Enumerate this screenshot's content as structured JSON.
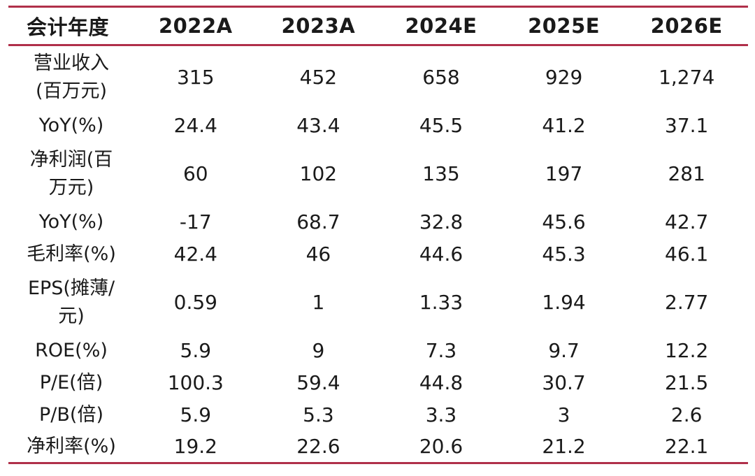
{
  "table": {
    "header": [
      "会计年度",
      "2022A",
      "2023A",
      "2024E",
      "2025E",
      "2026E"
    ],
    "rows": [
      {
        "label": "营业收入\n(百万元)",
        "values": [
          "315",
          "452",
          "658",
          "929",
          "1,274"
        ]
      },
      {
        "label": "YoY(%)",
        "values": [
          "24.4",
          "43.4",
          "45.5",
          "41.2",
          "37.1"
        ]
      },
      {
        "label": "净利润(百\n万元)",
        "values": [
          "60",
          "102",
          "135",
          "197",
          "281"
        ]
      },
      {
        "label": "YoY(%)",
        "values": [
          "-17",
          "68.7",
          "32.8",
          "45.6",
          "42.7"
        ]
      },
      {
        "label": "毛利率(%)",
        "values": [
          "42.4",
          "46",
          "44.6",
          "45.3",
          "46.1"
        ]
      },
      {
        "label": "EPS(摊薄/\n元)",
        "values": [
          "0.59",
          "1",
          "1.33",
          "1.94",
          "2.77"
        ]
      },
      {
        "label": "ROE(%)",
        "values": [
          "5.9",
          "9",
          "7.3",
          "9.7",
          "12.2"
        ]
      },
      {
        "label": "P/E(倍)",
        "values": [
          "100.3",
          "59.4",
          "44.8",
          "30.7",
          "21.5"
        ]
      },
      {
        "label": "P/B(倍)",
        "values": [
          "5.9",
          "5.3",
          "3.3",
          "3",
          "2.6"
        ]
      },
      {
        "label": "净利率(%)",
        "values": [
          "19.2",
          "22.6",
          "20.6",
          "21.2",
          "22.1"
        ]
      }
    ]
  },
  "colors": {
    "rule": "#b0304a",
    "text": "#1a1a1a",
    "background": "#ffffff"
  }
}
